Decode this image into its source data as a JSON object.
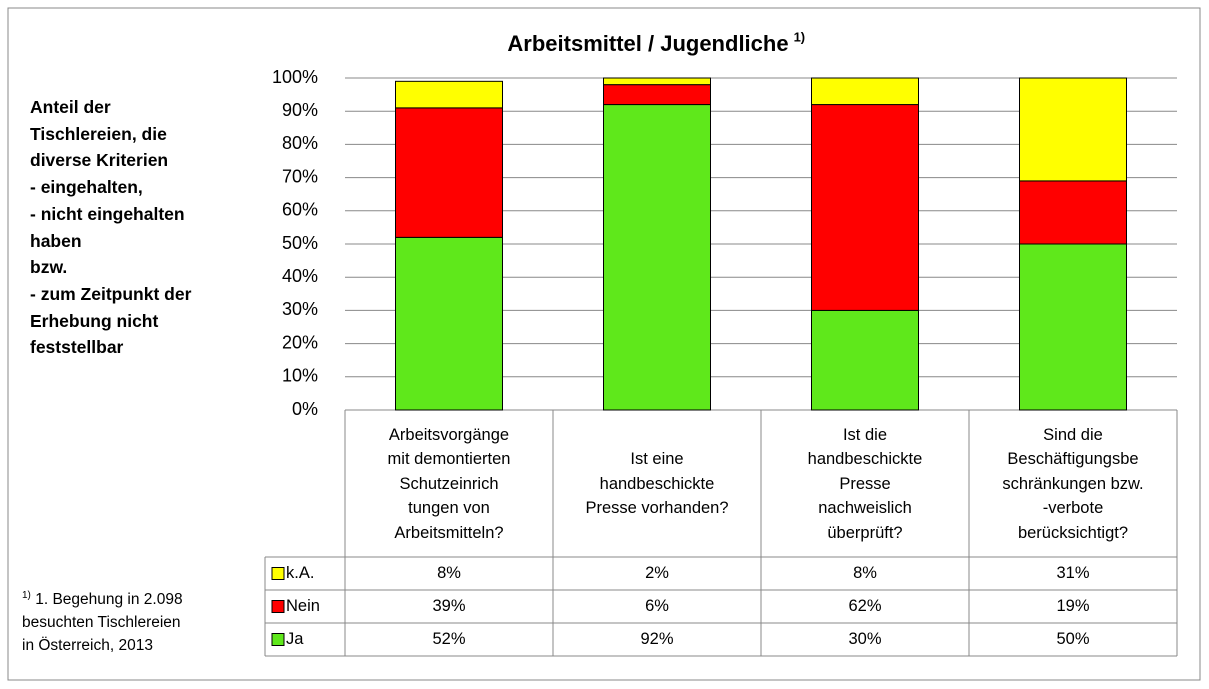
{
  "chart_data": {
    "type": "stacked_bar",
    "title": "Arbeitsmittel / Jugendliche",
    "title_superscript": "1)",
    "side_text": "Anteil der\nTischlereien, die\ndiverse Kriterien\n- eingehalten,\n- nicht eingehalten\nhaben\nbzw.\n- zum Zeitpunkt der\nErhebung nicht\nfeststellbar",
    "footnote_marker": "1)",
    "footnote": " 1. Begehung in 2.098\nbesuchten Tischlereien\nin Österreich, 2013",
    "categories": [
      "Arbeitsvorgänge\nmit demontierten\nSchutzeinrich\ntungen von\nArbeitsmitteln?",
      "Ist eine\nhandbeschickte\nPresse vorhanden?",
      "Ist die\nhandbeschickte\nPresse\nnachweislich\nüberprüft?",
      "Sind die\nBeschäftigungsbe\nschränkungen bzw.\n-verbote\nberücksichtigt?"
    ],
    "series": [
      {
        "name": "Ja",
        "color": "#5fe81b",
        "values": [
          52,
          92,
          30,
          50
        ],
        "value_labels": [
          "52%",
          "92%",
          "30%",
          "50%"
        ]
      },
      {
        "name": "Nein",
        "color": "#ff0000",
        "values": [
          39,
          6,
          62,
          19
        ],
        "value_labels": [
          "39%",
          "6%",
          "62%",
          "19%"
        ]
      },
      {
        "name": "k.A.",
        "color": "#ffff00",
        "values": [
          8,
          2,
          8,
          31
        ],
        "value_labels": [
          "8%",
          "2%",
          "8%",
          "31%"
        ]
      }
    ],
    "ylim": [
      0,
      100
    ],
    "yticks": [
      {
        "value": 0,
        "label": "0%"
      },
      {
        "value": 10,
        "label": "10%"
      },
      {
        "value": 20,
        "label": "20%"
      },
      {
        "value": 30,
        "label": "30%"
      },
      {
        "value": 40,
        "label": "40%"
      },
      {
        "value": 50,
        "label": "50%"
      },
      {
        "value": 60,
        "label": "60%"
      },
      {
        "value": 70,
        "label": "70%"
      },
      {
        "value": 80,
        "label": "80%"
      },
      {
        "value": 90,
        "label": "90%"
      },
      {
        "value": 100,
        "label": "100%"
      }
    ],
    "grid": true
  }
}
